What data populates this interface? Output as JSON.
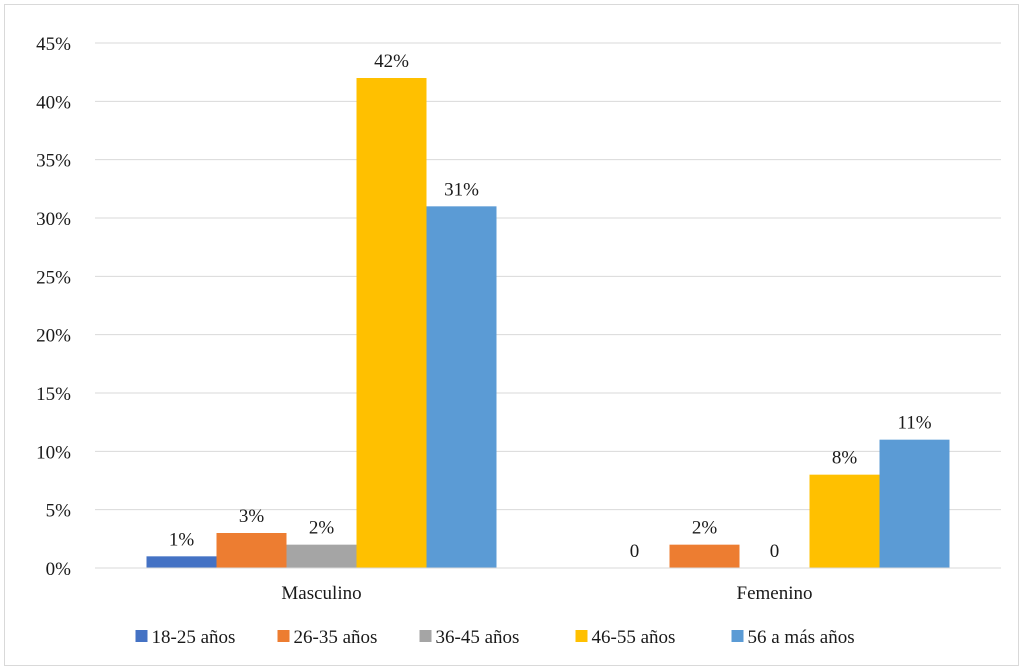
{
  "chart_data": {
    "type": "bar",
    "categories": [
      "Masculino",
      "Femenino"
    ],
    "series": [
      {
        "name": "18-25 años",
        "color": "#4472C4",
        "values": [
          1,
          0
        ],
        "labels": [
          "1%",
          "0"
        ]
      },
      {
        "name": "26-35 años",
        "color": "#ED7D31",
        "values": [
          3,
          2
        ],
        "labels": [
          "3%",
          "2%"
        ]
      },
      {
        "name": "36-45 años",
        "color": "#A5A5A5",
        "values": [
          2,
          0
        ],
        "labels": [
          "2%",
          "0"
        ]
      },
      {
        "name": "46-55 años",
        "color": "#FFC000",
        "values": [
          42,
          8
        ],
        "labels": [
          "42%",
          "8%"
        ]
      },
      {
        "name": "56 a más años",
        "color": "#5B9BD5",
        "values": [
          31,
          11
        ],
        "labels": [
          "31%",
          "11%"
        ]
      }
    ],
    "ylim": [
      0,
      45
    ],
    "yticks": [
      "0%",
      "5%",
      "10%",
      "15%",
      "20%",
      "25%",
      "30%",
      "35%",
      "40%",
      "45%"
    ],
    "ytick_values": [
      0,
      5,
      10,
      15,
      20,
      25,
      30,
      35,
      40,
      45
    ],
    "grid": true,
    "legend_position": "bottom",
    "title": "",
    "xlabel": "",
    "ylabel": ""
  }
}
